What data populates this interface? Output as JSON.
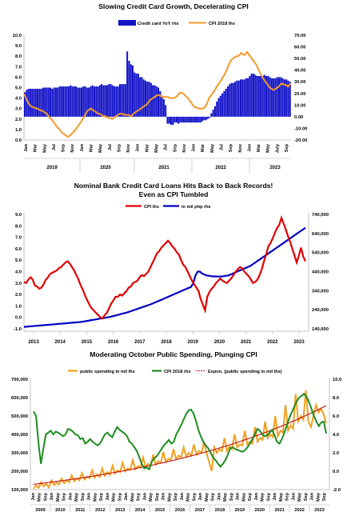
{
  "chart_data": [
    {
      "type": "bar",
      "title": "Slowing Credit Card Growth, Decelerating CPI",
      "xlabel": "",
      "ylabel": "",
      "ylim": [
        0,
        10
      ],
      "y2lim": [
        -20,
        70
      ],
      "month_labels": [
        "Jan",
        "Mar",
        "May",
        "Jul",
        "Sep",
        "Nov",
        "Jan",
        "Mar",
        "May",
        "Jul",
        "Sep",
        "Nov",
        "Jan",
        "Mar",
        "May",
        "Jul",
        "Sep",
        "Nov",
        "Jan",
        "Mar",
        "May",
        "Jul",
        "Sep",
        "Nov",
        "Jan",
        "Mar",
        "May",
        "July",
        "Sep"
      ],
      "years": [
        "2019",
        "2020",
        "2021",
        "2022",
        "2023"
      ],
      "legend": {
        "bar": "Credit card YoY rhs",
        "line": "CPI 2018 lhs"
      },
      "colors": {
        "bar": "#1414c8",
        "line": "#f39a2b"
      },
      "series": [
        {
          "name": "Credit card YoY rhs",
          "kind": "bar",
          "axis": "right",
          "values": [
            21,
            23,
            24,
            24,
            24,
            24,
            24,
            24,
            24,
            24,
            25,
            25,
            25,
            25,
            25,
            24,
            25,
            25,
            25,
            26,
            26,
            26,
            26,
            26,
            26,
            27,
            26,
            26,
            26,
            25,
            25,
            25,
            26,
            26,
            25,
            25,
            26,
            27,
            26,
            26,
            26,
            27,
            28,
            27,
            27,
            27,
            28,
            28,
            27,
            26,
            26,
            26,
            28,
            28,
            28,
            28,
            56,
            48,
            45,
            44,
            38,
            37,
            37,
            34,
            34,
            32,
            31,
            30,
            30,
            29,
            27,
            27,
            26,
            25,
            22,
            18,
            15,
            10,
            -6,
            -6,
            -7,
            -7,
            -5,
            -5,
            -6,
            -5,
            -5,
            -5,
            -5,
            -5,
            -5,
            -5,
            -5,
            -5,
            -5,
            -5,
            -5,
            -4,
            -3,
            -3,
            -2,
            -1,
            3,
            6,
            9,
            13,
            16,
            18,
            20,
            22,
            24,
            26,
            28,
            29,
            29,
            30,
            31,
            31,
            32,
            32,
            32,
            33,
            33,
            35,
            37,
            37,
            36,
            35,
            35,
            35,
            35,
            36,
            35,
            35,
            34,
            33,
            33,
            33,
            34,
            34,
            34,
            33,
            32,
            32,
            31,
            30
          ]
        },
        {
          "name": "CPI 2018 lhs",
          "kind": "line",
          "axis": "left",
          "values": [
            4.4,
            4.1,
            3.8,
            3.5,
            3.3,
            3.2,
            3.1,
            3.1,
            3.0,
            3.0,
            2.9,
            2.8,
            2.8,
            2.7,
            2.6,
            2.5,
            2.3,
            2.1,
            2.0,
            1.8,
            1.6,
            1.4,
            1.2,
            1.1,
            0.9,
            0.7,
            0.6,
            0.5,
            0.4,
            0.3,
            0.4,
            0.5,
            0.7,
            0.8,
            1.0,
            1.2,
            1.4,
            1.6,
            1.8,
            2.1,
            2.3,
            2.6,
            2.8,
            2.9,
            3.0,
            2.9,
            2.8,
            2.7,
            2.6,
            2.5,
            2.5,
            2.4,
            2.3,
            2.3,
            2.2,
            2.2,
            2.1,
            2.1,
            2.0,
            2.1,
            2.2,
            2.3,
            2.4,
            2.5,
            2.5,
            2.5,
            2.4,
            2.4,
            2.4,
            2.4,
            2.3,
            2.3,
            2.5,
            2.6,
            2.7,
            2.8,
            2.9,
            3.0,
            3.1,
            3.2,
            3.3,
            3.4,
            3.6,
            3.8,
            3.9,
            4.0,
            4.1,
            4.2,
            4.3,
            4.3,
            4.2,
            4.1,
            4.1,
            4.1,
            4.1,
            4.1,
            4.0,
            4.0,
            4.0,
            4.0,
            4.1,
            4.2,
            4.4,
            4.5,
            4.5,
            4.4,
            4.3,
            4.1,
            4.0,
            3.8,
            3.6,
            3.4,
            3.2,
            3.1,
            3.1,
            3.0,
            3.0,
            3.0,
            3.0,
            3.1,
            3.3,
            3.6,
            4.0,
            4.2,
            4.4,
            4.6,
            4.8,
            5.1,
            5.3,
            5.5,
            5.7,
            6.0,
            6.2,
            6.5,
            6.8,
            7.2,
            7.5,
            7.7,
            7.8,
            7.9,
            8.0,
            8.0,
            8.1,
            8.3,
            8.2,
            8.1,
            8.2,
            8.4,
            8.2,
            8.0,
            7.8,
            7.6,
            7.4,
            7.2,
            6.9,
            6.6,
            6.3,
            6.0,
            5.8,
            5.6,
            5.4,
            5.2,
            5.0,
            4.9,
            4.8,
            4.8,
            4.9,
            5.0,
            5.1,
            5.3,
            5.4,
            5.3,
            5.3,
            5.2,
            5.1,
            5.3,
            5.4
          ]
        }
      ]
    },
    {
      "type": "line",
      "title": "Nominal Bank Credit Card Loans Hits Back to Back Records!",
      "subtitle": "Even as CPI Tumbled",
      "xlabel": "",
      "ylabel": "",
      "ylim": [
        -1,
        9
      ],
      "y2lim": [
        140000,
        740000
      ],
      "yticks": [
        "9.0",
        "8.0",
        "7.0",
        "6.0",
        "5.0",
        "4.0",
        "3.0",
        "2.0",
        "1.0",
        "0.0",
        "-1.0"
      ],
      "y2ticks": [
        "740,000",
        "640,000",
        "540,000",
        "440,000",
        "340,000",
        "240,000",
        "140,000"
      ],
      "xticks": [
        "2013",
        "2014",
        "2015",
        "2016",
        "2017",
        "2018",
        "2019",
        "2020",
        "2021",
        "2022",
        "2023"
      ],
      "legend": [
        "CPI lhs",
        "in mil php rhs"
      ],
      "colors": {
        "cpi": "#e00000",
        "loans": "#0000c0"
      },
      "series": [
        {
          "name": "CPI lhs",
          "axis": "left",
          "values": [
            3.1,
            3.0,
            3.3,
            3.5,
            3.3,
            2.8,
            2.7,
            2.5,
            2.6,
            2.9,
            3.3,
            3.5,
            3.8,
            3.9,
            4.0,
            4.1,
            4.3,
            4.4,
            4.6,
            4.8,
            4.9,
            4.7,
            4.4,
            4.1,
            3.7,
            3.3,
            2.8,
            2.4,
            1.9,
            1.5,
            1.1,
            0.8,
            0.6,
            0.4,
            0.2,
            0.0,
            -0.1,
            0.2,
            0.4,
            0.8,
            1.2,
            1.5,
            1.8,
            1.8,
            2.0,
            1.9,
            2.1,
            2.3,
            2.6,
            2.7,
            3.0,
            3.1,
            3.2,
            3.5,
            3.7,
            3.6,
            3.8,
            4.0,
            4.4,
            4.8,
            5.2,
            5.6,
            5.8,
            6.1,
            6.3,
            6.5,
            6.7,
            6.5,
            6.2,
            6.0,
            5.7,
            5.5,
            5.0,
            4.6,
            4.4,
            4.0,
            3.6,
            3.2,
            2.9,
            2.6,
            2.3,
            1.6,
            1.1,
            0.6,
            1.8,
            2.2,
            2.5,
            2.7,
            3.0,
            3.2,
            3.4,
            3.2,
            3.1,
            3.0,
            3.2,
            3.4,
            3.7,
            4.0,
            4.2,
            4.4,
            4.3,
            4.0,
            3.8,
            3.6,
            3.3,
            3.0,
            3.1,
            3.3,
            3.7,
            4.2,
            4.9,
            5.5,
            6.2,
            6.5,
            6.9,
            7.4,
            7.8,
            8.1,
            8.7,
            8.2,
            7.7,
            7.1,
            6.6,
            6.0,
            5.4,
            4.8,
            5.4,
            6.1,
            5.3,
            4.9
          ]
        },
        {
          "name": "in mil php rhs",
          "axis": "right",
          "values": [
            150000,
            151000,
            152000,
            153000,
            154000,
            155000,
            156000,
            157000,
            158000,
            159000,
            160000,
            161000,
            162000,
            163000,
            164000,
            165000,
            166000,
            167000,
            168000,
            169000,
            170000,
            171000,
            172000,
            173000,
            174000,
            175000,
            176000,
            178000,
            180000,
            182000,
            184000,
            186000,
            188000,
            190000,
            192000,
            194000,
            196000,
            198000,
            200000,
            202000,
            205000,
            208000,
            211000,
            214000,
            217000,
            220000,
            223000,
            226000,
            230000,
            234000,
            238000,
            242000,
            246000,
            250000,
            254000,
            258000,
            262000,
            266000,
            270000,
            275000,
            280000,
            285000,
            290000,
            295000,
            300000,
            305000,
            310000,
            315000,
            320000,
            325000,
            330000,
            335000,
            340000,
            345000,
            350000,
            355000,
            360000,
            380000,
            420000,
            440000,
            440000,
            430000,
            425000,
            420000,
            418000,
            416000,
            415000,
            415000,
            414000,
            414000,
            415000,
            416000,
            418000,
            420000,
            425000,
            430000,
            435000,
            440000,
            445000,
            450000,
            455000,
            460000,
            465000,
            470000,
            478000,
            486000,
            494000,
            502000,
            510000,
            518000,
            526000,
            534000,
            542000,
            550000,
            558000,
            566000,
            574000,
            582000,
            590000,
            598000,
            606000,
            614000,
            622000,
            630000,
            638000,
            646000,
            654000,
            662000,
            670000
          ]
        }
      ]
    },
    {
      "type": "line",
      "title": "Moderating October Public Spending, Plunging CPI",
      "xlabel": "",
      "ylabel": "",
      "ylim": [
        100000,
        700000
      ],
      "y2lim": [
        -2,
        10
      ],
      "yticks": [
        "700,000",
        "600,000",
        "500,000",
        "400,000",
        "300,000",
        "200,000",
        "100,000"
      ],
      "y2ticks": [
        "10.0",
        "8.0",
        "6.0",
        "4.0",
        "2.0",
        "0.0",
        "-2.0"
      ],
      "month_labels": [
        "Jan",
        "May",
        "Sep",
        "Jan",
        "May",
        "Sep",
        "Jan",
        "May",
        "Sep",
        "Jan",
        "May",
        "Sep",
        "Jan",
        "May",
        "Sep",
        "Jan",
        "May",
        "Sep",
        "Jan",
        "May",
        "Sep",
        "Jan",
        "May",
        "Sep",
        "Jan",
        "May",
        "Sep",
        "Jan",
        "May",
        "Sep",
        "Jan",
        "May",
        "Sep",
        "Jan",
        "May",
        "Sep",
        "Jan",
        "May",
        "Sep",
        "Jan",
        "May",
        "Sep",
        "Jan",
        "May",
        "Sep",
        "Jan",
        "May",
        "Sep"
      ],
      "years": [
        "2009",
        "2010",
        "2011",
        "2012",
        "2013",
        "2014",
        "2015",
        "2016",
        "2017",
        "2018",
        "2019",
        "2020",
        "2021",
        "2022",
        "2023"
      ],
      "legend": [
        "public spending in mil lhs",
        "CPI 2018 rhs",
        "Expon. (public spending in mil lhs)"
      ],
      "colors": {
        "spending": "#f0a020",
        "cpi": "#1e8c1e",
        "trend": "#c01010"
      },
      "series": [
        {
          "name": "public spending in mil lhs",
          "axis": "left",
          "values": [
            105000,
            122000,
            110000,
            140000,
            118000,
            130000,
            112000,
            150000,
            125000,
            138000,
            128000,
            160000,
            135000,
            150000,
            140000,
            178000,
            145000,
            160000,
            150000,
            190000,
            155000,
            170000,
            162000,
            205000,
            165000,
            182000,
            170000,
            215000,
            175000,
            195000,
            180000,
            230000,
            188000,
            205000,
            195000,
            245000,
            200000,
            215000,
            208000,
            260000,
            210000,
            228000,
            220000,
            275000,
            225000,
            240000,
            230000,
            290000,
            235000,
            255000,
            245000,
            305000,
            250000,
            268000,
            260000,
            320000,
            265000,
            285000,
            275000,
            330000,
            278000,
            300000,
            285000,
            345000,
            290000,
            310000,
            300000,
            360000,
            295000,
            250000,
            200000,
            330000,
            300000,
            320000,
            310000,
            380000,
            310000,
            335000,
            320000,
            400000,
            330000,
            345000,
            340000,
            420000,
            345000,
            360000,
            350000,
            440000,
            360000,
            380000,
            370000,
            470000,
            380000,
            400000,
            385000,
            500000,
            390000,
            420000,
            410000,
            560000,
            420000,
            450000,
            430000,
            620000,
            470000,
            500000,
            480000,
            640000,
            470000,
            440000,
            500000,
            560000,
            520000,
            540000,
            510000,
            460000
          ]
        },
        {
          "name": "CPI 2018 rhs",
          "axis": "right",
          "values": [
            6.5,
            6.0,
            3.0,
            0.8,
            2.5,
            4.0,
            4.2,
            4.4,
            4.0,
            4.3,
            4.2,
            4.0,
            3.8,
            4.0,
            4.6,
            4.5,
            4.3,
            4.0,
            3.9,
            3.5,
            3.6,
            3.0,
            3.2,
            3.5,
            3.2,
            3.0,
            2.8,
            3.0,
            3.5,
            4.0,
            4.2,
            3.9,
            3.7,
            4.3,
            4.8,
            4.5,
            4.3,
            4.1,
            3.8,
            3.2,
            3.0,
            2.6,
            2.2,
            1.5,
            0.8,
            0.3,
            0.4,
            0.2,
            1.0,
            1.4,
            1.6,
            2.0,
            2.4,
            2.8,
            3.1,
            3.4,
            3.0,
            3.2,
            4.0,
            4.5,
            5.0,
            5.6,
            6.2,
            6.6,
            6.7,
            6.3,
            5.5,
            4.5,
            3.8,
            3.2,
            2.8,
            2.5,
            2.0,
            1.5,
            1.2,
            0.8,
            0.5,
            0.8,
            1.2,
            1.8,
            2.5,
            2.6,
            2.4,
            2.3,
            2.2,
            2.1,
            2.3,
            2.6,
            3.0,
            3.5,
            4.0,
            4.6,
            4.4,
            4.0,
            3.8,
            3.9,
            4.2,
            4.5,
            3.9,
            3.2,
            3.0,
            3.5,
            4.2,
            5.0,
            5.8,
            6.4,
            7.0,
            7.6,
            8.0,
            8.2,
            8.4,
            8.1,
            7.5,
            6.8,
            6.0,
            5.4,
            4.9,
            5.3,
            5.4,
            4.1
          ]
        }
      ]
    }
  ]
}
